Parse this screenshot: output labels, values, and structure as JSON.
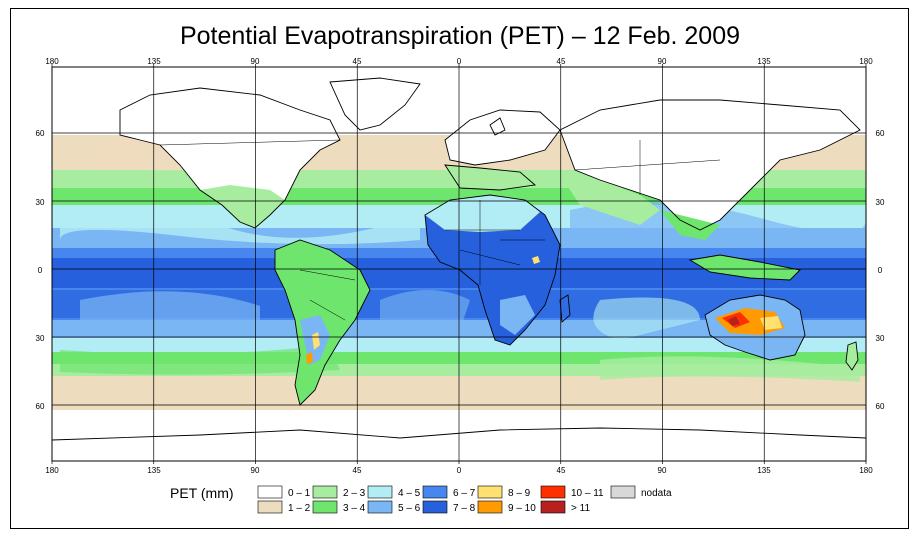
{
  "title": "Potential Evapotranspiration (PET) – 12 Feb. 2009",
  "lon_ticks": [
    "180",
    "135",
    "90",
    "45",
    "0",
    "45",
    "90",
    "135",
    "180"
  ],
  "lat_ticks": [
    "60",
    "30",
    "0",
    "30",
    "60"
  ],
  "legend": {
    "label": "PET (mm)",
    "items": [
      {
        "label": "0 – 1",
        "color": "#ffffff"
      },
      {
        "label": "1 – 2",
        "color": "#eedcbe"
      },
      {
        "label": "2 – 3",
        "color": "#a8eca0"
      },
      {
        "label": "3 – 4",
        "color": "#6ee66e"
      },
      {
        "label": "4 – 5",
        "color": "#b2ecf4"
      },
      {
        "label": "5 – 6",
        "color": "#7ab6f4"
      },
      {
        "label": "6 – 7",
        "color": "#4686ee"
      },
      {
        "label": "7 – 8",
        "color": "#2660dc"
      },
      {
        "label": "8 – 9",
        "color": "#ffe070"
      },
      {
        "label": "9 – 10",
        "color": "#ff9a00"
      },
      {
        "label": "10 – 11",
        "color": "#ff3000"
      },
      {
        "label": "> 11",
        "color": "#b82020"
      },
      {
        "label": "nodata",
        "color": "#d8d8d8"
      }
    ]
  }
}
